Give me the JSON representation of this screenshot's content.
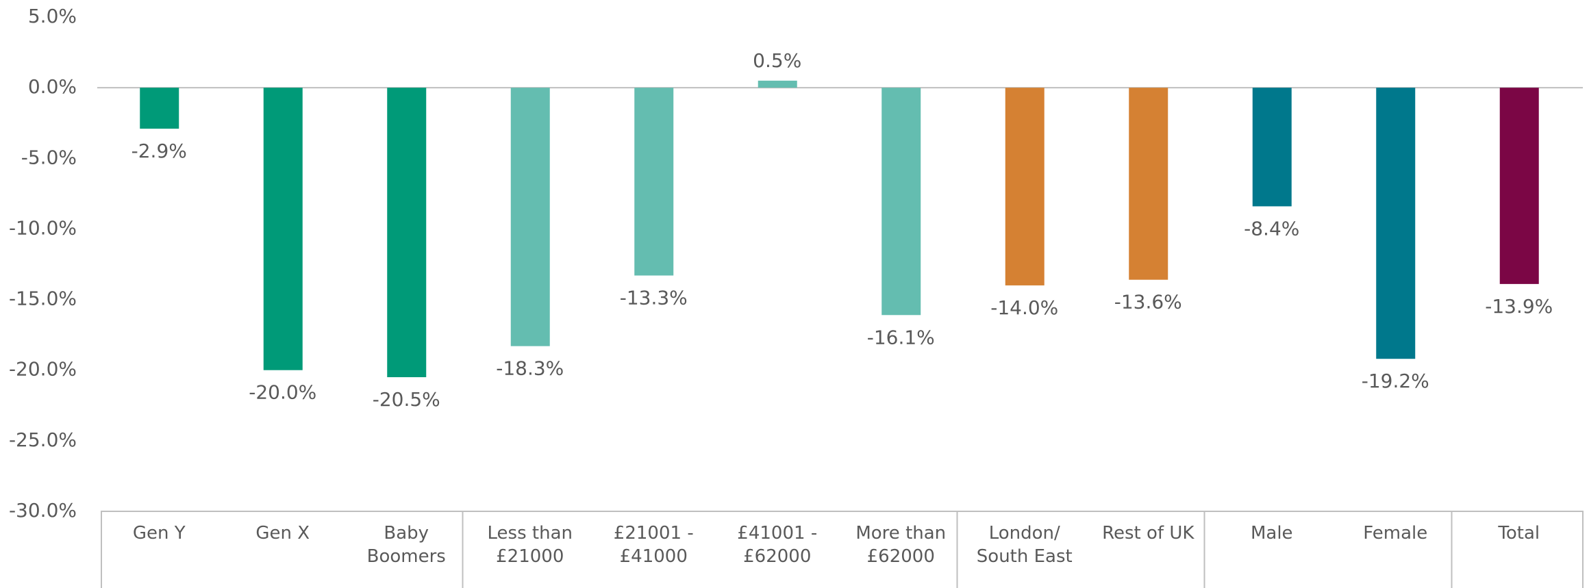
{
  "chart_data": {
    "type": "bar",
    "categories": [
      "Gen Y",
      "Gen X",
      "Baby\nBoomers",
      "Less than\n£21000",
      "£21001 -\n£41000",
      "£41001 -\n£62000",
      "More than\n£62000",
      "London/\nSouth East",
      "Rest of UK",
      "Male",
      "Female",
      "Total"
    ],
    "values": [
      -2.9,
      -20.0,
      -20.5,
      -18.3,
      -13.3,
      0.5,
      -16.1,
      -14.0,
      -13.6,
      -8.4,
      -19.2,
      -13.9
    ],
    "value_labels": [
      "-2.9%",
      "-20.0%",
      "-20.5%",
      "-18.3%",
      "-13.3%",
      "0.5%",
      "-16.1%",
      "-14.0%",
      "-13.6%",
      "-8.4%",
      "-19.2%",
      "-13.9%"
    ],
    "colors": [
      "#009a78",
      "#009a78",
      "#009a78",
      "#64bdb0",
      "#64bdb0",
      "#64bdb0",
      "#64bdb0",
      "#d58133",
      "#d58133",
      "#00788c",
      "#00788c",
      "#7b0645"
    ],
    "ylim": [
      -30,
      5
    ],
    "yticks": [
      {
        "value": -30,
        "label": "-30.0%"
      },
      {
        "value": -25,
        "label": "-25.0%"
      },
      {
        "value": -20,
        "label": "-20.0%"
      },
      {
        "value": -15,
        "label": "-15.0%"
      },
      {
        "value": -10,
        "label": "-10.0%"
      },
      {
        "value": -5,
        "label": "-5.0%"
      },
      {
        "value": 0,
        "label": "0.0%"
      },
      {
        "value": 5,
        "label": "5.0%"
      }
    ]
  }
}
